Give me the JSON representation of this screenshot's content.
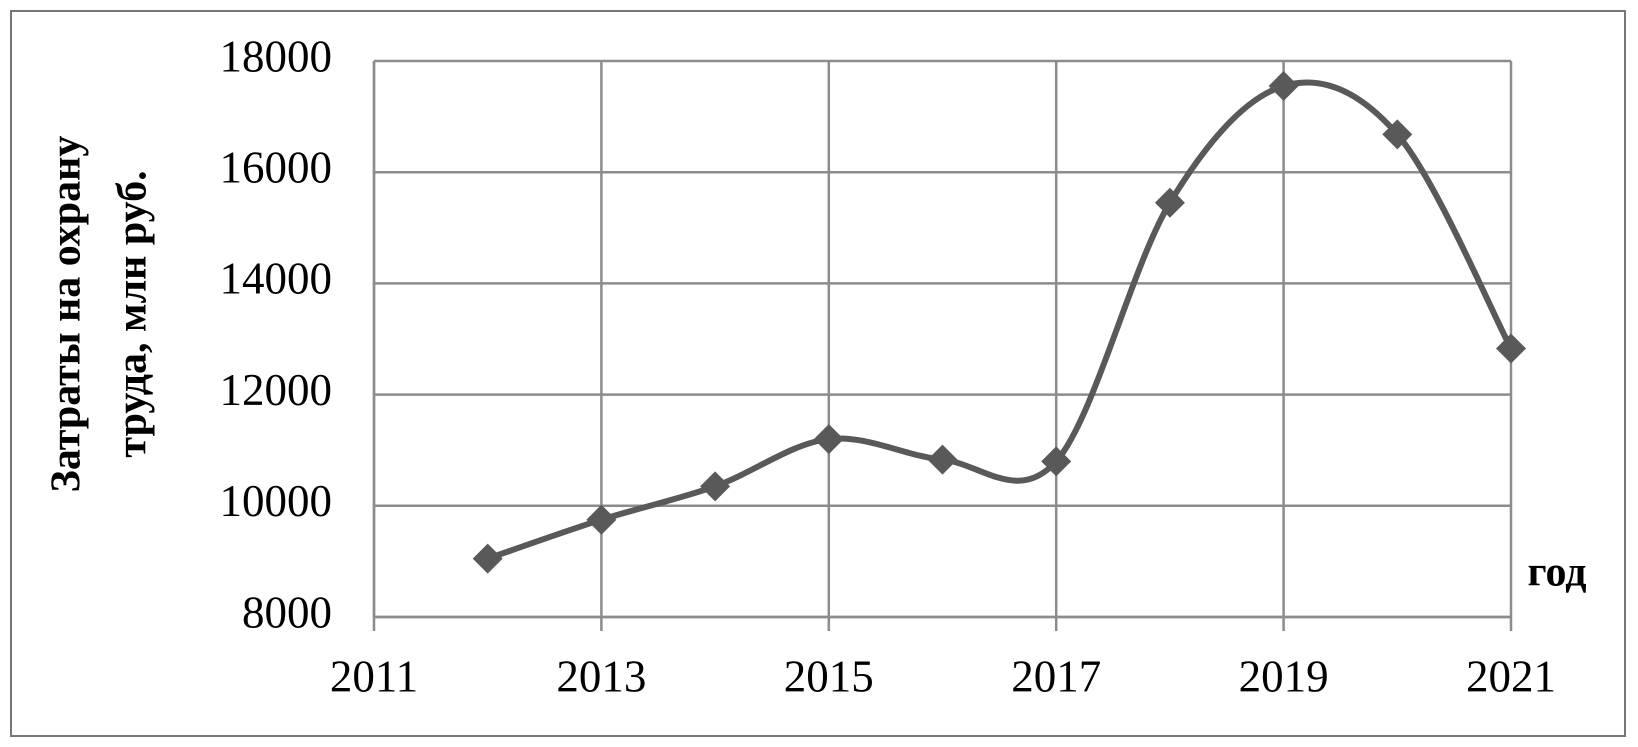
{
  "chart_data": {
    "type": "line",
    "y_label": [
      "Затраты на охрану",
      "труда, млн руб."
    ],
    "x_label": "год",
    "x": [
      2012,
      2013,
      2014,
      2015,
      2016,
      2017,
      2018,
      2019,
      2020,
      2021
    ],
    "series": [
      {
        "color": "#595959",
        "values": [
          9050,
          9750,
          10350,
          11200,
          10830,
          10800,
          15450,
          17550,
          16680,
          12830
        ]
      }
    ],
    "xlim": [
      2011,
      2021
    ],
    "xticks": [
      2011,
      2013,
      2015,
      2017,
      2019,
      2021
    ],
    "ylim": [
      8000,
      18000
    ],
    "yticks": [
      8000,
      10000,
      12000,
      14000,
      16000,
      18000
    ],
    "grid": true,
    "smooth": true,
    "marker": "diamond"
  }
}
